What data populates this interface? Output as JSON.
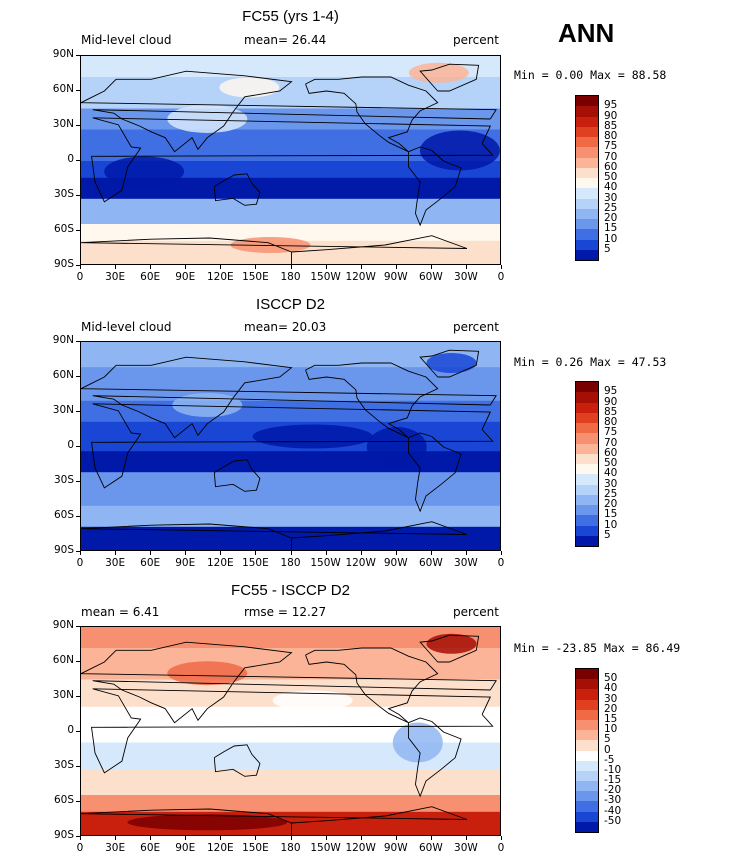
{
  "season_label": "ANN",
  "panels": [
    {
      "title": "FC55 (yrs 1-4)",
      "left_label": "Mid-level cloud",
      "center_label": "mean=   26.44",
      "right_label": "percent",
      "minmax": "Min =    0.00 Max =   88.58",
      "style": "abs"
    },
    {
      "title": "ISCCP D2",
      "left_label": "Mid-level cloud",
      "center_label": "mean=   20.03",
      "right_label": "percent",
      "minmax": "Min =    0.26 Max =   47.53",
      "style": "obs"
    },
    {
      "title": "FC55 - ISCCP D2",
      "left_label": "mean =    6.41",
      "center_label": "rmse =   12.27",
      "right_label": "percent",
      "minmax": "Min = -23.85 Max =   86.49",
      "style": "diff"
    }
  ],
  "lat_ticks": [
    "90N",
    "60N",
    "30N",
    "0",
    "30S",
    "60S",
    "90S"
  ],
  "lon_ticks": [
    "0",
    "30E",
    "60E",
    "90E",
    "120E",
    "150E",
    "180",
    "150W",
    "120W",
    "90W",
    "60W",
    "30W",
    "0"
  ],
  "colorbar_abs": {
    "labels": [
      "95",
      "90",
      "85",
      "80",
      "75",
      "70",
      "60",
      "50",
      "40",
      "30",
      "25",
      "20",
      "15",
      "10",
      "5"
    ],
    "colors": [
      "#7a0000",
      "#a50f05",
      "#c8200c",
      "#e0401f",
      "#f06a46",
      "#f79070",
      "#fbb497",
      "#fde0cc",
      "#fff8ee",
      "#d6e8fb",
      "#b5d2f8",
      "#8fb6f2",
      "#6a96ec",
      "#3f6fe3",
      "#1a46d6",
      "#0019a8"
    ]
  },
  "colorbar_diff": {
    "labels": [
      "50",
      "40",
      "30",
      "20",
      "15",
      "10",
      "5",
      "0",
      "-5",
      "-10",
      "-15",
      "-20",
      "-30",
      "-40",
      "-50"
    ],
    "colors": [
      "#7a0000",
      "#a50f05",
      "#c8200c",
      "#e0401f",
      "#f06a46",
      "#f79070",
      "#fbb497",
      "#fde0cc",
      "#ffffff",
      "#d6e8fb",
      "#b5d2f8",
      "#8fb6f2",
      "#6a96ec",
      "#3f6fe3",
      "#1a46d6",
      "#0019a8"
    ]
  }
}
